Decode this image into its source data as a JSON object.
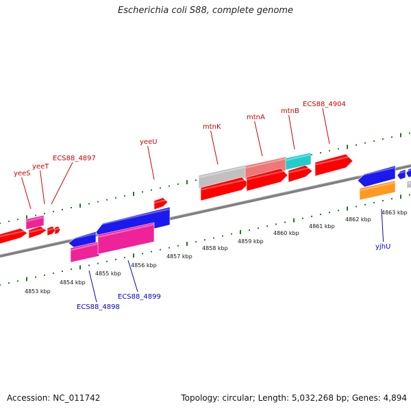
{
  "title": "Escherichia coli S88, complete genome",
  "footer": {
    "accession": "Accession: NC_011742",
    "stats": "Topology: circular; Length: 5,032,268 bp; Genes: 4,894"
  },
  "colors": {
    "forward_label": "#cc0000",
    "reverse_label": "#0000cc",
    "tick": "#1a7a1a",
    "backbone": "#808080",
    "red": "#ff0000",
    "blue": "#1a1aee",
    "magenta": "#ee2299",
    "grey": "#c0c0c0",
    "salmon": "#ee7777",
    "cyan": "#22cccc",
    "orange": "#ff9922"
  },
  "forward_labels": [
    "yeeS",
    "yeeT",
    "ECS88_4897",
    "yeeU",
    "mtnK",
    "mtnA",
    "mtnB",
    "ECS88_4904"
  ],
  "reverse_labels": [
    "ECS88_4898",
    "ECS88_4899",
    "yjhU"
  ],
  "kbp_ticks": [
    "4853 kbp",
    "4854 kbp",
    "4855 kbp",
    "4856 kbp",
    "4857 kbp",
    "4858 kbp",
    "4859 kbp",
    "4860 kbp",
    "4861 kbp",
    "4862 kbp",
    "4863 kbp"
  ]
}
